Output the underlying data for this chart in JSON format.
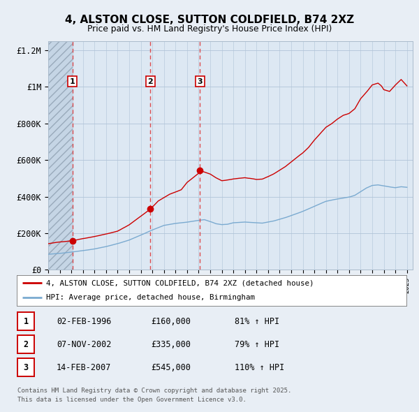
{
  "title": "4, ALSTON CLOSE, SUTTON COLDFIELD, B74 2XZ",
  "subtitle": "Price paid vs. HM Land Registry's House Price Index (HPI)",
  "bg_color": "#e8eef5",
  "plot_bg_color": "#dde8f3",
  "red_line_color": "#cc0000",
  "blue_line_color": "#7aaad0",
  "ylim": [
    0,
    1250000
  ],
  "yticks": [
    0,
    200000,
    400000,
    600000,
    800000,
    1000000,
    1200000
  ],
  "ytick_labels": [
    "£0",
    "£200K",
    "£400K",
    "£600K",
    "£800K",
    "£1M",
    "£1.2M"
  ],
  "purchase_dates": [
    1996.09,
    2002.84,
    2007.12
  ],
  "purchase_prices": [
    160000,
    335000,
    545000
  ],
  "purchase_labels": [
    "1",
    "2",
    "3"
  ],
  "legend_red": "4, ALSTON CLOSE, SUTTON COLDFIELD, B74 2XZ (detached house)",
  "legend_blue": "HPI: Average price, detached house, Birmingham",
  "table_rows": [
    {
      "num": "1",
      "date": "02-FEB-1996",
      "price": "£160,000",
      "hpi": "81% ↑ HPI"
    },
    {
      "num": "2",
      "date": "07-NOV-2002",
      "price": "£335,000",
      "hpi": "79% ↑ HPI"
    },
    {
      "num": "3",
      "date": "14-FEB-2007",
      "price": "£545,000",
      "hpi": "110% ↑ HPI"
    }
  ],
  "footer1": "Contains HM Land Registry data © Crown copyright and database right 2025.",
  "footer2": "This data is licensed under the Open Government Licence v3.0."
}
